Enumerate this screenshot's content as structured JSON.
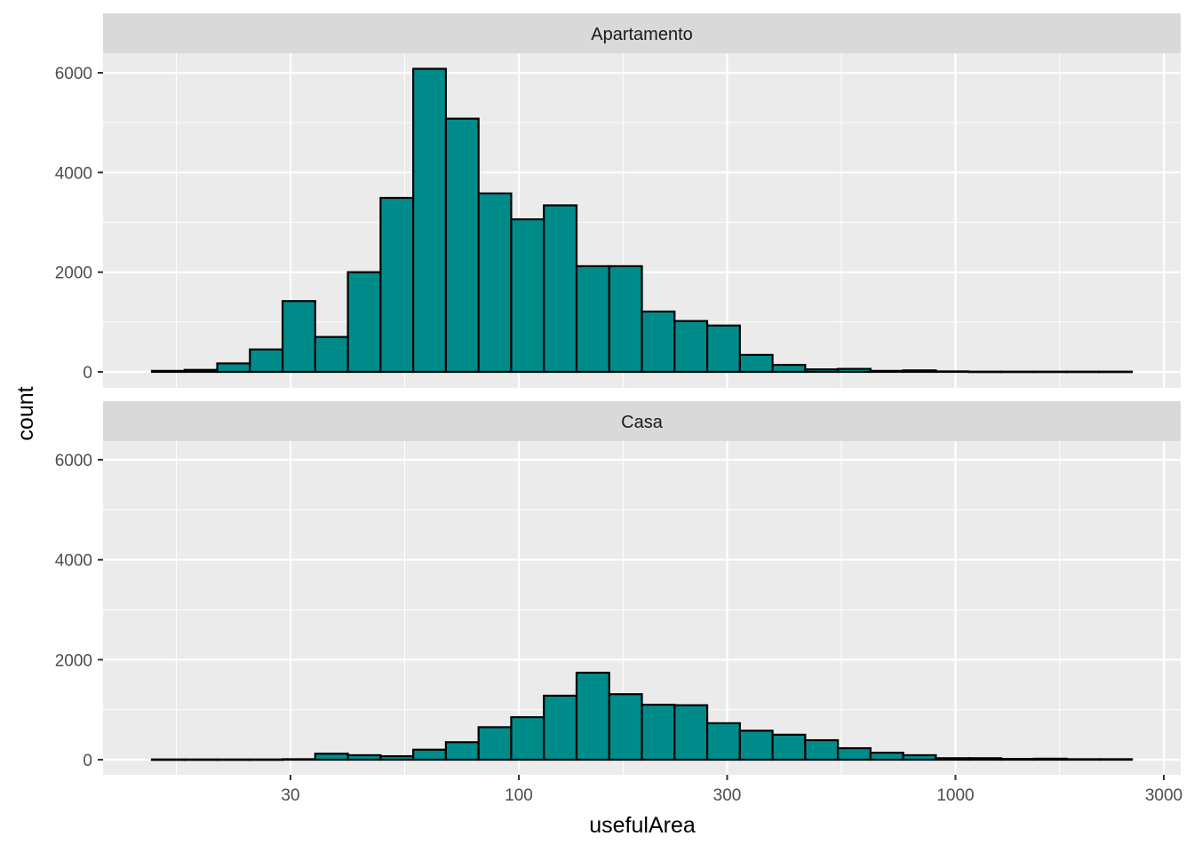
{
  "chart_data": {
    "type": "bar",
    "subtype": "faceted histogram",
    "xlabel": "usefulArea",
    "ylabel": "count",
    "x_scale": "log10",
    "xlim": [
      14.4,
      2535
    ],
    "ylim": [
      0,
      6000
    ],
    "x_ticks": [
      30,
      100,
      300,
      1000,
      3000
    ],
    "x_tick_labels": [
      "30",
      "100",
      "300",
      "1000",
      "3000"
    ],
    "y_ticks": [
      0,
      2000,
      4000,
      6000
    ],
    "y_tick_labels": [
      "0",
      "2000",
      "4000",
      "6000"
    ],
    "bins": 30,
    "bin_range_log10": [
      1.1597,
      3.404
    ],
    "fill": "#008B8B",
    "outline": "#000000",
    "grid": true,
    "facets": [
      {
        "label": "Apartamento",
        "values": [
          20,
          40,
          170,
          450,
          1420,
          700,
          2000,
          3490,
          6080,
          5080,
          3580,
          3060,
          3340,
          2120,
          2120,
          1210,
          1020,
          930,
          340,
          140,
          50,
          60,
          20,
          30,
          10,
          5,
          5,
          5,
          5,
          5
        ]
      },
      {
        "label": "Casa",
        "values": [
          5,
          5,
          5,
          5,
          10,
          120,
          90,
          70,
          200,
          350,
          650,
          850,
          1280,
          1740,
          1310,
          1100,
          1090,
          730,
          580,
          500,
          390,
          230,
          140,
          90,
          30,
          30,
          15,
          20,
          10,
          10
        ]
      }
    ]
  }
}
